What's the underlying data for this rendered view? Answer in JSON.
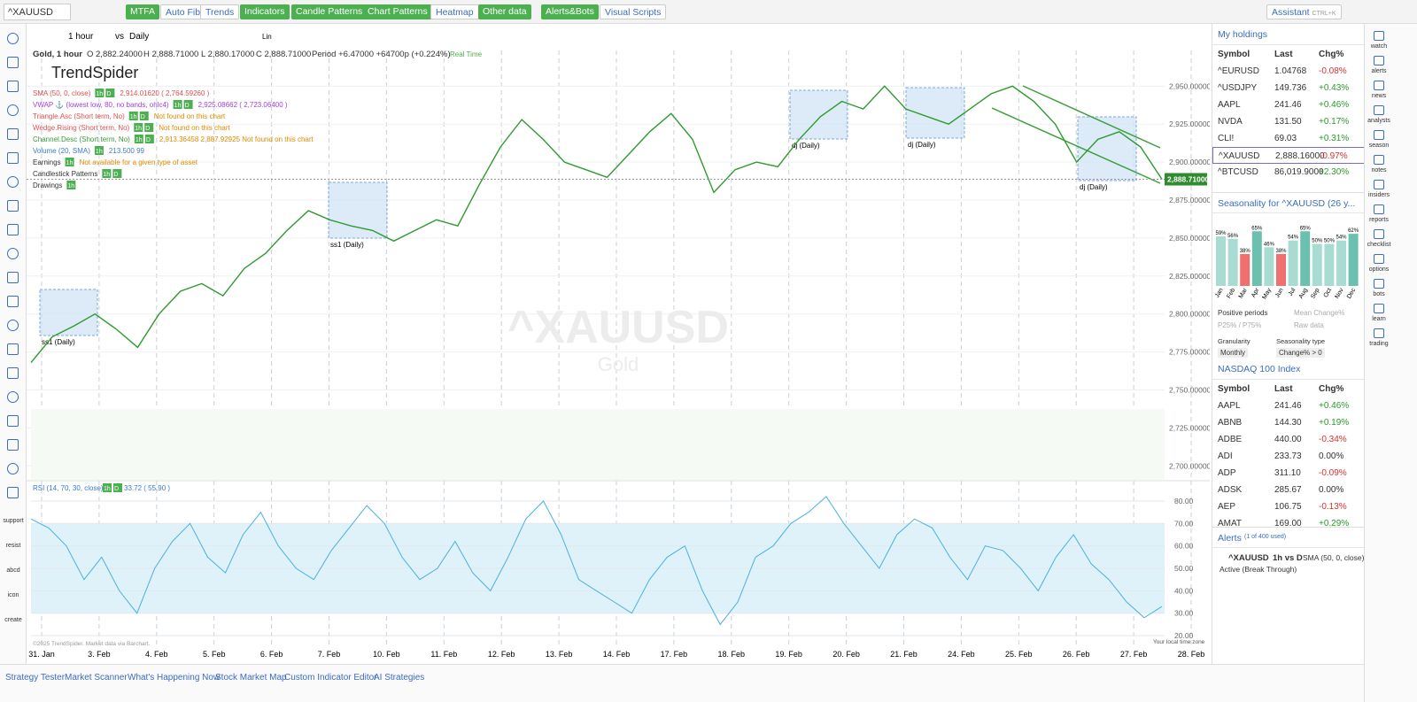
{
  "toolbar": {
    "symbol": "^XAUUSD",
    "buttons": [
      "MTFA",
      "Auto Fib",
      "Trends",
      "Indicators",
      "Candle Patterns",
      "Chart Patterns",
      "Heatmap",
      "Other data",
      "Alerts&Bots",
      "Visual Scripts"
    ],
    "assistant": "Assistant",
    "shortcut": "CTRL+K"
  },
  "sidebar": {
    "labels": [
      "support",
      "resist",
      "abcd",
      "icon",
      "create"
    ]
  },
  "chart": {
    "interval": "1 hour",
    "vs": "vs",
    "compare": "Daily",
    "scale": "Lin",
    "ohlc": [
      "Gold, 1 hour",
      "O 2,882.24000",
      "H 2,888.71000",
      "L 2,880.17000",
      "C 2,888.71000",
      "Period +6.47000 +64700p (+0.224%)",
      "Real Time"
    ],
    "logo": "TrendSpider",
    "legend": [
      {
        "text": "SMA (50, 0, close)",
        "tags": [
          "1h",
          "D"
        ],
        "extra": "2,914.01620 ( 2,764.59260 )",
        "color": "#e05050"
      },
      {
        "text": "VWAP ⚓ (lowest low, 80, no bands, ohlc4)",
        "tags": [
          "1h",
          "D"
        ],
        "extra": "2,925.08662 ( 2,723.06400 )",
        "color": "#a040e0"
      },
      {
        "text": "Triangle.Asc (Short term, No)",
        "tags": [
          "1h",
          "D"
        ],
        "extra": "Not found on this chart",
        "color": "#e05050"
      },
      {
        "text": "Wedge.Rising (Short term, No)",
        "tags": [
          "1h",
          "D"
        ],
        "extra": "Not found on this chart",
        "color": "#e05050"
      },
      {
        "text": "Channel.Desc (Short term, No)",
        "tags": [
          "1h",
          "D"
        ],
        "extra": "2,913.36458 2,887.92925   Not found on this chart",
        "color": "#3a9a3a"
      },
      {
        "text": "Volume (20, SMA)",
        "tags": [
          "1h"
        ],
        "extra": "213.500 99",
        "color": "#3a7ad0"
      },
      {
        "text": "Earnings",
        "tags": [
          "1h"
        ],
        "extra": "Not available for a given type of asset",
        "color": "#333333"
      },
      {
        "text": "Candlestick Patterns",
        "tags": [
          "1h",
          "D"
        ],
        "extra": "",
        "color": "#333333"
      },
      {
        "text": "Drawings",
        "tags": [
          "1h"
        ],
        "extra": "",
        "color": "#333333"
      }
    ],
    "watermark": "^XAUUSD",
    "watermark_sub": "Gold",
    "annotations": [
      "ss1 (Daily)",
      "ss1 (Daily)",
      "dj (Daily)",
      "dj (Daily)",
      "dj (Daily)"
    ],
    "price": {
      "ylim": [
        2692,
        2991
      ],
      "yticks": [
        {
          "value": 2950,
          "label": "2,950.00000"
        },
        {
          "value": 2925,
          "label": "2,925.00000"
        },
        {
          "value": 2900,
          "label": "2,900.00000"
        },
        {
          "value": 2875,
          "label": "2,875.00000"
        },
        {
          "value": 2850,
          "label": "2,850.00000"
        },
        {
          "value": 2825,
          "label": "2,825.00000"
        },
        {
          "value": 2800,
          "label": "2,800.00000"
        },
        {
          "value": 2775,
          "label": "2,775.00000"
        },
        {
          "value": 2750,
          "label": "2,750.00000"
        },
        {
          "value": 2725,
          "label": "2,725.00000"
        },
        {
          "value": 2700,
          "label": "2,700.00000"
        }
      ],
      "color": "#2e9a2e",
      "values": [
        2768,
        2785,
        2792,
        2800,
        2790,
        2778,
        2800,
        2815,
        2820,
        2812,
        2830,
        2840,
        2855,
        2868,
        2862,
        2858,
        2855,
        2848,
        2855,
        2862,
        2858,
        2885,
        2910,
        2928,
        2915,
        2900,
        2895,
        2890,
        2905,
        2920,
        2932,
        2915,
        2880,
        2895,
        2900,
        2897,
        2915,
        2930,
        2940,
        2935,
        2950,
        2935,
        2930,
        2925,
        2935,
        2945,
        2950,
        2940,
        2925,
        2900,
        2915,
        2920,
        2910,
        2888.71
      ],
      "last": {
        "value": 2888.71,
        "label": "2,888.71000"
      }
    },
    "rsi": {
      "label": "RSI (14, 70, 30, close)",
      "tags": [
        "1h",
        "D"
      ],
      "readout": "33.72 ( 55.90 )",
      "ylim": [
        14.5,
        87.5
      ],
      "yticks": [
        {
          "value": 80,
          "label": "80.00"
        },
        {
          "value": 70,
          "label": "70.00"
        },
        {
          "value": 60,
          "label": "60.00"
        },
        {
          "value": 50,
          "label": "50.00"
        },
        {
          "value": 40,
          "label": "40.00"
        },
        {
          "value": 30,
          "label": "30.00"
        },
        {
          "value": 20,
          "label": "20.00"
        }
      ],
      "bands": [
        30,
        70
      ],
      "color": "#4ab0e0",
      "values": [
        72,
        68,
        60,
        45,
        55,
        40,
        30,
        50,
        62,
        70,
        55,
        48,
        65,
        75,
        60,
        50,
        45,
        58,
        68,
        78,
        70,
        55,
        45,
        50,
        62,
        48,
        40,
        55,
        72,
        80,
        65,
        45,
        40,
        35,
        30,
        45,
        55,
        60,
        40,
        25,
        35,
        55,
        60,
        70,
        75,
        82,
        70,
        60,
        50,
        65,
        72,
        68,
        55,
        45,
        60,
        58,
        50,
        40,
        55,
        65,
        52,
        45,
        35,
        28,
        33
      ]
    },
    "dates": [
      "31. Jan",
      "3. Feb",
      "4. Feb",
      "5. Feb",
      "6. Feb",
      "7. Feb",
      "10. Feb",
      "11. Feb",
      "12. Feb",
      "13. Feb",
      "14. Feb",
      "17. Feb",
      "18. Feb",
      "19. Feb",
      "20. Feb",
      "21. Feb",
      "24. Feb",
      "25. Feb",
      "26. Feb",
      "27. Feb",
      "28. Feb"
    ],
    "copyright": "©2025 TrendSpider. Market data via Barchart.",
    "timezone": "Your local time zone"
  },
  "holdings": {
    "title": "My holdings",
    "columns": [
      "Symbol",
      "Last",
      "Chg%"
    ],
    "rows": [
      [
        "^EURUSD",
        "1.04768",
        "-0.08%"
      ],
      [
        "^USDJPY",
        "149.736",
        "+0.43%"
      ],
      [
        "AAPL",
        "241.46",
        "+0.46%"
      ],
      [
        "NVDA",
        "131.50",
        "+0.17%"
      ],
      [
        "CLI!",
        "69.03",
        "+0.31%"
      ],
      [
        "^XAUUSD",
        "2,888.16000",
        "-0.97%"
      ],
      [
        "^BTCUSD",
        "86,019.9000",
        "+2.30%"
      ]
    ]
  },
  "seasonality": {
    "title": "Seasonality for ^XAUUSD (26 y...",
    "categories": [
      "Jan",
      "Feb",
      "Mar",
      "Apr",
      "May",
      "Jun",
      "Jul",
      "Aug",
      "Sep",
      "Oct",
      "Nov",
      "Dec"
    ],
    "values": [
      59,
      56,
      38,
      65,
      46,
      38,
      54,
      65,
      50,
      50,
      54,
      62
    ],
    "value_labels": [
      "59%",
      "56%",
      "38%",
      "65%",
      "46%",
      "38%",
      "54%",
      "65%",
      "50%",
      "50%",
      "54%",
      "62%"
    ],
    "legend": [
      "Positive periods",
      "Mean Change%",
      "P25% / P75%",
      "Raw data"
    ],
    "controls": [
      "Granularity",
      "Seasonality type"
    ],
    "control_values": [
      "Monthly",
      "Change% > 0"
    ]
  },
  "nasdaq": {
    "title": "NASDAQ 100 Index",
    "columns": [
      "Symbol",
      "Last",
      "Chg%"
    ],
    "rows": [
      [
        "AAPL",
        "241.46",
        "+0.46%"
      ],
      [
        "ABNB",
        "144.30",
        "+0.19%"
      ],
      [
        "ADBE",
        "440.00",
        "-0.34%"
      ],
      [
        "ADI",
        "233.73",
        "0.00%"
      ],
      [
        "ADP",
        "311.10",
        "-0.09%"
      ],
      [
        "ADSK",
        "285.67",
        "0.00%"
      ],
      [
        "AEP",
        "106.75",
        "-0.13%"
      ],
      [
        "AMAT",
        "169.00",
        "+0.29%"
      ]
    ]
  },
  "alerts": {
    "title": "Alerts",
    "count": "(1 of 400 used)",
    "symbol": "^XAUUSD",
    "mode": "1h vs D",
    "condition": "SMA (50, 0, close)",
    "status": "Active (Break Through)"
  },
  "right_icons": [
    "watch",
    "alerts",
    "news",
    "analysts",
    "season",
    "notes",
    "insiders",
    "reports",
    "checklist",
    "options",
    "bots",
    "learn",
    "trading"
  ],
  "bottom": [
    "Strategy Tester",
    "Market Scanner",
    "What's Happening Now",
    "Stock Market Map",
    "Custom Indicator Editor",
    "AI Strategies"
  ]
}
